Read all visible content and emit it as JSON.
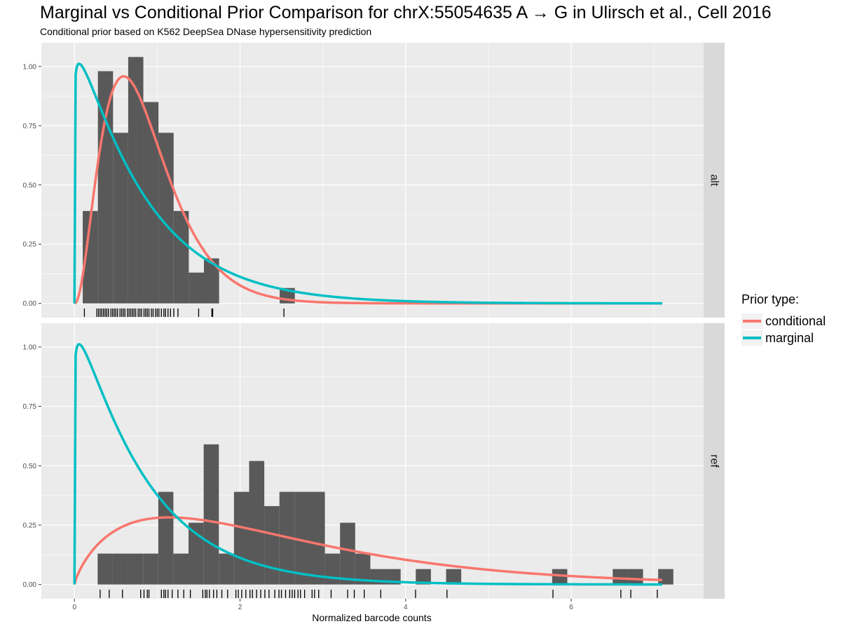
{
  "title": "Marginal vs Conditional Prior Comparison for chrX:55054635 A → G in Ulirsch et al., Cell 2016",
  "subtitle": "Conditional prior based on K562 DeepSea DNase hypersensitivity prediction",
  "colors": {
    "conditional": "#F8766D",
    "marginal": "#00BFC4",
    "bar": "#595959",
    "panel_bg": "#EBEBEB",
    "strip_bg": "#D9D9D9",
    "grid": "#FFFFFF"
  },
  "chart_data": {
    "type": "bar",
    "xlabel": "Normalized barcode counts",
    "ylabel": "",
    "xlim": [
      -0.4,
      7.6
    ],
    "ylim": [
      -0.06,
      1.1
    ],
    "x_ticks": [
      0,
      2,
      4,
      6
    ],
    "x_tick_labels": [
      "0",
      "2",
      "4",
      "6"
    ],
    "y_ticks": [
      0,
      0.25,
      0.5,
      0.75,
      1.0
    ],
    "y_tick_labels": [
      "0.00",
      "0.25",
      "0.50",
      "0.75",
      "1.00"
    ],
    "grid": true,
    "bin_width": 0.183,
    "legend": {
      "title": "Prior type:",
      "position": "right",
      "entries": [
        "conditional",
        "marginal"
      ]
    },
    "panels": [
      {
        "strip": "alt",
        "histogram": {
          "bin_left": [
            0.1,
            0.283,
            0.466,
            0.649,
            0.832,
            1.015,
            1.198,
            1.381,
            1.564,
            2.479
          ],
          "density": [
            0.39,
            0.98,
            0.72,
            1.04,
            0.85,
            0.72,
            0.39,
            0.13,
            0.19,
            0.065
          ]
        },
        "rug": [
          0.12,
          0.27,
          0.29,
          0.31,
          0.33,
          0.35,
          0.37,
          0.39,
          0.41,
          0.44,
          0.46,
          0.48,
          0.5,
          0.52,
          0.55,
          0.57,
          0.59,
          0.61,
          0.64,
          0.66,
          0.68,
          0.7,
          0.72,
          0.74,
          0.77,
          0.79,
          0.81,
          0.84,
          0.86,
          0.88,
          0.9,
          0.93,
          0.95,
          0.98,
          1.0,
          1.02,
          1.05,
          1.08,
          1.1,
          1.13,
          1.16,
          1.2,
          1.25,
          1.5,
          1.66,
          1.67,
          2.53
        ],
        "series": [
          {
            "name": "conditional",
            "distribution": "gamma",
            "shape": 3.2,
            "rate": 3.7,
            "x_max": 7.1
          },
          {
            "name": "marginal",
            "distribution": "gamma",
            "shape": 1.07,
            "rate": 1.26,
            "x_max": 7.1
          }
        ]
      },
      {
        "strip": "ref",
        "histogram": {
          "bin_left": [
            0.28,
            0.463,
            0.646,
            0.829,
            1.012,
            1.195,
            1.378,
            1.561,
            1.744,
            1.927,
            2.11,
            2.293,
            2.476,
            2.659,
            2.842,
            3.025,
            3.208,
            3.391,
            3.574,
            3.757,
            4.123,
            4.489,
            5.77,
            6.502,
            6.685,
            7.051
          ],
          "density": [
            0.13,
            0.13,
            0.13,
            0.13,
            0.39,
            0.13,
            0.26,
            0.59,
            0.13,
            0.39,
            0.52,
            0.33,
            0.39,
            0.39,
            0.39,
            0.13,
            0.26,
            0.13,
            0.065,
            0.065,
            0.065,
            0.065,
            0.065,
            0.065,
            0.065,
            0.065
          ]
        },
        "rug": [
          0.31,
          0.42,
          0.58,
          0.8,
          0.84,
          0.88,
          0.9,
          1.05,
          1.08,
          1.1,
          1.13,
          1.18,
          1.25,
          1.32,
          1.4,
          1.55,
          1.58,
          1.6,
          1.63,
          1.68,
          1.72,
          1.78,
          1.85,
          1.95,
          1.98,
          2.02,
          2.07,
          2.12,
          2.15,
          2.2,
          2.25,
          2.3,
          2.35,
          2.42,
          2.47,
          2.5,
          2.55,
          2.6,
          2.63,
          2.66,
          2.7,
          2.73,
          2.78,
          2.87,
          2.9,
          2.95,
          3.1,
          3.3,
          3.38,
          3.5,
          3.7,
          4.12,
          4.5,
          5.78,
          6.6,
          6.72,
          7.04
        ],
        "series": [
          {
            "name": "conditional",
            "distribution": "gamma",
            "shape": 1.8,
            "rate": 0.7,
            "x_max": 7.1
          },
          {
            "name": "marginal",
            "distribution": "gamma",
            "shape": 1.07,
            "rate": 1.26,
            "x_max": 7.1
          }
        ]
      }
    ]
  }
}
